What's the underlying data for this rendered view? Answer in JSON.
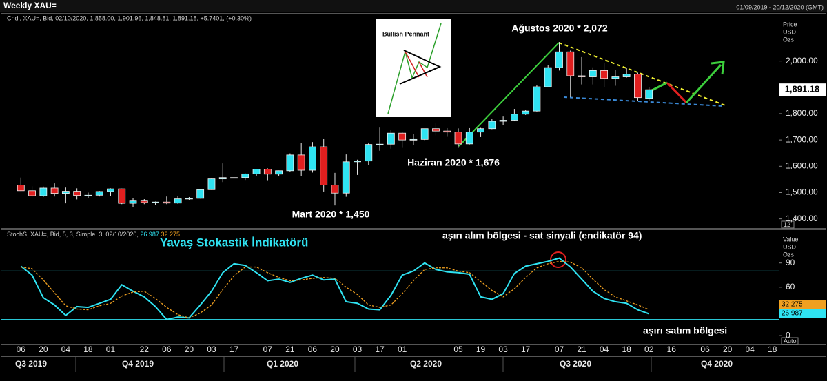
{
  "header": {
    "title": "Weekly XAU=",
    "range": "01/09/2019 - 20/12/2020 (GMT)"
  },
  "x_axis": {
    "xlim": [
      -1,
      68
    ],
    "xticks": [
      {
        "value": 0,
        "label": "06"
      },
      {
        "value": 2,
        "label": "20"
      },
      {
        "value": 4,
        "label": "04"
      },
      {
        "value": 6,
        "label": "18"
      },
      {
        "value": 8,
        "label": "01"
      },
      {
        "value": 11,
        "label": "22"
      },
      {
        "value": 13,
        "label": "06"
      },
      {
        "value": 15,
        "label": "20"
      },
      {
        "value": 17,
        "label": "03"
      },
      {
        "value": 19,
        "label": "17"
      },
      {
        "value": 22,
        "label": "07"
      },
      {
        "value": 24,
        "label": "21"
      },
      {
        "value": 26,
        "label": "06"
      },
      {
        "value": 28,
        "label": "20"
      },
      {
        "value": 30,
        "label": "03"
      },
      {
        "value": 32,
        "label": "17"
      },
      {
        "value": 34,
        "label": "01"
      },
      {
        "value": 39,
        "label": "05"
      },
      {
        "value": 41,
        "label": "19"
      },
      {
        "value": 43,
        "label": "03"
      },
      {
        "value": 45,
        "label": "17"
      },
      {
        "value": 48,
        "label": "07"
      },
      {
        "value": 50,
        "label": "21"
      },
      {
        "value": 52,
        "label": "04"
      },
      {
        "value": 54,
        "label": "18"
      },
      {
        "value": 56,
        "label": "02"
      },
      {
        "value": 58,
        "label": "16"
      },
      {
        "value": 61,
        "label": "06"
      },
      {
        "value": 63,
        "label": "20"
      },
      {
        "value": 65,
        "label": "04"
      },
      {
        "value": 67,
        "label": "18"
      }
    ],
    "quarters": [
      "Q3 2019",
      "Q4 2019",
      "Q1 2020",
      "Q2 2020",
      "Q3 2020",
      "Q4 2020"
    ]
  },
  "chart_data": [
    {
      "type": "candlestick",
      "legend_text": "Cndl, XAU=, Bid, 02/10/2020, 1,858.00, 1,901.96, 1,848.81, 1,891.18, +5.7401, (+0.30%)",
      "axis_units": [
        "Price",
        "USD",
        "Ozs"
      ],
      "scale_box": "12",
      "up_color": "#2fe3f2",
      "down_color": "#e01f1f",
      "open": [
        1529,
        1507,
        1488,
        1517,
        1497,
        1505,
        1489,
        1490,
        1504,
        1514,
        1459,
        1468,
        1462,
        1464,
        1460,
        1476,
        1478,
        1511,
        1552,
        1557,
        1557,
        1571,
        1589,
        1570,
        1583,
        1643,
        1585,
        1674,
        1529,
        1498,
        1617,
        1620,
        1683,
        1684,
        1726,
        1700,
        1702,
        1743,
        1734,
        1730,
        1685,
        1730,
        1743,
        1771,
        1775,
        1798,
        1810,
        1902,
        1975,
        2035,
        1944,
        1940,
        1964,
        1934,
        1940,
        1950,
        1858
      ],
      "high": [
        1557,
        1524,
        1523,
        1535,
        1519,
        1516,
        1500,
        1506,
        1516,
        1515,
        1479,
        1475,
        1466,
        1485,
        1486,
        1483,
        1514,
        1553,
        1611,
        1563,
        1573,
        1589,
        1592,
        1584,
        1649,
        1689,
        1692,
        1703,
        1575,
        1645,
        1625,
        1690,
        1747,
        1739,
        1729,
        1722,
        1743,
        1765,
        1745,
        1744,
        1745,
        1746,
        1779,
        1789,
        1818,
        1815,
        1908,
        1985,
        2072,
        2040,
        2015,
        1976,
        1992,
        1966,
        1973,
        1956,
        1901.96
      ],
      "low": [
        1506,
        1484,
        1483,
        1485,
        1459,
        1474,
        1478,
        1485,
        1488,
        1456,
        1445,
        1456,
        1452,
        1456,
        1457,
        1471,
        1477,
        1510,
        1540,
        1536,
        1548,
        1563,
        1547,
        1562,
        1578,
        1563,
        1576,
        1504,
        1451,
        1484,
        1567,
        1604,
        1659,
        1667,
        1670,
        1681,
        1699,
        1717,
        1712,
        1670,
        1683,
        1711,
        1741,
        1757,
        1771,
        1795,
        1808,
        1900,
        1964,
        1863,
        1911,
        1911,
        1902,
        1906,
        1937,
        1848,
        1848.81
      ],
      "close": [
        1507,
        1488,
        1517,
        1497,
        1505,
        1489,
        1490,
        1504,
        1514,
        1459,
        1468,
        1462,
        1464,
        1460,
        1476,
        1478,
        1511,
        1552,
        1557,
        1557,
        1571,
        1589,
        1570,
        1583,
        1643,
        1585,
        1674,
        1529,
        1498,
        1617,
        1620,
        1683,
        1684,
        1726,
        1700,
        1702,
        1743,
        1734,
        1730,
        1685,
        1730,
        1743,
        1771,
        1775,
        1798,
        1810,
        1902,
        1975,
        2035,
        1944,
        1940,
        1964,
        1934,
        1940,
        1950,
        1861,
        1891.18
      ],
      "last_label": "1,891.18",
      "ylim": [
        1365,
        2185
      ],
      "yticks": [
        {
          "value": 1400,
          "label": "1,400.00"
        },
        {
          "value": 1500,
          "label": "1,500.00"
        },
        {
          "value": 1600,
          "label": "1,600.00"
        },
        {
          "value": 1700,
          "label": "1,700.00"
        },
        {
          "value": 1800,
          "label": "1,800.00"
        },
        {
          "value": 1900,
          "label": "1,900.00"
        },
        {
          "value": 2000,
          "label": "2,000.00"
        }
      ],
      "annotations": [
        "Ağustos 2020 * 2,072",
        "Haziran 2020 * 1,676",
        "Mart 2020 * 1,450"
      ],
      "inset_title": "Bullish Pennant"
    },
    {
      "type": "line",
      "legend_text": "StochS, XAU=, Bid,  5, 3, Simple, 3, 02/10/2020,",
      "axis_units": [
        "Value",
        "USD",
        "Ozs"
      ],
      "scale_box": "Auto",
      "title": "Yavaş Stokastik İndikatörü",
      "annotations": [
        "aşırı alım bölgesi - sat sinyali (endikatör 94)",
        "aşırı satım bölgesi"
      ],
      "ylim": [
        -11,
        129
      ],
      "yticks": [
        0,
        60,
        90
      ],
      "levels": [
        20,
        80
      ],
      "level_color": "#2fe3f2",
      "series": [
        {
          "color": "#2fe3f2",
          "values": [
            86,
            75,
            47,
            38,
            25,
            36,
            35,
            40,
            45,
            63,
            55,
            48,
            36,
            20,
            23,
            22,
            38,
            55,
            78,
            89,
            87,
            78,
            68,
            70,
            66,
            71,
            75,
            69,
            70,
            42,
            40,
            33,
            32,
            50,
            75,
            80,
            90,
            82,
            79,
            78,
            76,
            48,
            45,
            52,
            77,
            86,
            89,
            92,
            96,
            85,
            70,
            55,
            46,
            42,
            40,
            32,
            26.987
          ],
          "last_label": "26.987"
        },
        {
          "color": "#f0a020",
          "dashed": true,
          "values": [
            85,
            83,
            69,
            53,
            37,
            33,
            32,
            37,
            40,
            49,
            54,
            55,
            46,
            35,
            26,
            22,
            28,
            38,
            57,
            74,
            85,
            85,
            78,
            72,
            68,
            69,
            71,
            72,
            71,
            60,
            51,
            38,
            35,
            38,
            52,
            68,
            82,
            84,
            84,
            80,
            78,
            67,
            56,
            48,
            58,
            72,
            84,
            89,
            92,
            91,
            84,
            70,
            57,
            48,
            43,
            38,
            32.275
          ],
          "last_label": "32.275"
        }
      ]
    }
  ]
}
